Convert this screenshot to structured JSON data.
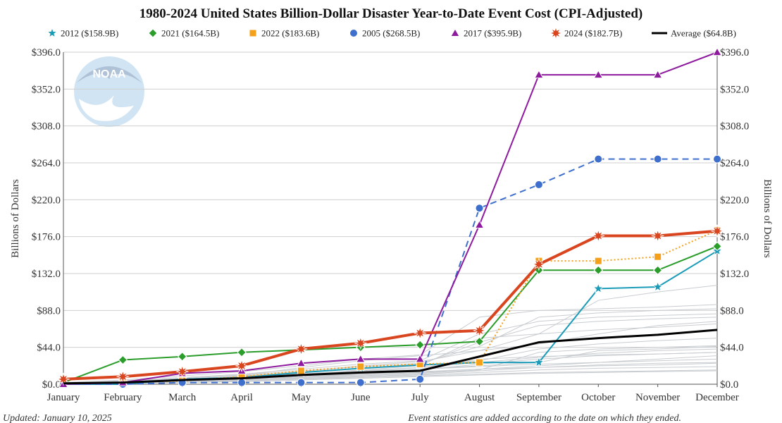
{
  "chart_data": {
    "type": "line",
    "title": "1980-2024 United States Billion-Dollar Disaster Year-to-Date Event Cost (CPI-Adjusted)",
    "ylabel": "Billions of Dollars",
    "ylabel_right": "Billions of Dollars",
    "xlabel": "",
    "ylim": [
      0,
      396
    ],
    "yticks": [
      "$0.0",
      "$44.0",
      "$88.0",
      "$132.0",
      "$176.0",
      "$220.0",
      "$264.0",
      "$308.0",
      "$352.0",
      "$396.0"
    ],
    "yticks_right": [
      "$0.0",
      "$44.0",
      "$88.0",
      "$132.0",
      "$176.0",
      "$220.0",
      "$264.0",
      "$308.0",
      "$352.0",
      "$396.0"
    ],
    "ytick_values": [
      0,
      44,
      88,
      132,
      176,
      220,
      264,
      308,
      352,
      396
    ],
    "categories": [
      "January",
      "February",
      "March",
      "April",
      "May",
      "June",
      "July",
      "August",
      "September",
      "October",
      "November",
      "December"
    ],
    "logo_text": "NOAA",
    "footer_left": "Updated: January 10, 2025",
    "footer_right": "Event statistics are added according to the date on which they ended.",
    "series": [
      {
        "name": "2012 ($158.9B)",
        "legend": "2012 ($158.9B)",
        "color": "#1a9bb8",
        "marker": "star5",
        "dash": "",
        "width": 2,
        "values": [
          0,
          0,
          6,
          8,
          14,
          19,
          23,
          26,
          26,
          114,
          116,
          159
        ]
      },
      {
        "name": "2021 ($164.5B)",
        "legend": "2021 ($164.5B)",
        "color": "#2a9d2a",
        "marker": "diamond",
        "dash": "",
        "width": 2,
        "values": [
          2,
          29,
          33,
          38,
          41,
          44,
          47,
          51,
          136,
          136,
          136,
          164.5
        ]
      },
      {
        "name": "2022 ($183.6B)",
        "legend": "2022 ($183.6B)",
        "color": "#f5a01a",
        "marker": "square",
        "dash": "2,3",
        "width": 2,
        "values": [
          0,
          2,
          4,
          9,
          16,
          21,
          24,
          26,
          147,
          147,
          152,
          183.6
        ]
      },
      {
        "name": "2005 ($268.5B)",
        "legend": "2005 ($268.5B)",
        "color": "#3e6fcd",
        "marker": "circle",
        "dash": "9,6",
        "width": 2,
        "values": [
          0,
          0,
          2,
          2,
          2,
          2,
          6,
          210,
          238,
          268.5,
          268.5,
          268.5
        ]
      },
      {
        "name": "2017 ($395.9B)",
        "legend": "2017 ($395.9B)",
        "color": "#8e1a9e",
        "marker": "triangle",
        "dash": "",
        "width": 2,
        "values": [
          0,
          2,
          13,
          16,
          25,
          30,
          30,
          190,
          369,
          369,
          369,
          395.9
        ]
      },
      {
        "name": "2024 ($182.7B)",
        "legend": "2024 ($182.7B)",
        "color": "#d9451e",
        "marker": "star8",
        "dash": "",
        "width": 4,
        "values": [
          6,
          9,
          15,
          22,
          42,
          49,
          61,
          64,
          143,
          177,
          177,
          182.7
        ]
      },
      {
        "name": "Average ($64.8B)",
        "legend": "Average ($64.8B)",
        "color": "#000000",
        "marker": "none",
        "dash": "",
        "width": 3,
        "values": [
          1,
          2,
          5,
          7,
          11,
          14,
          16,
          33,
          50,
          55,
          59,
          64.8
        ]
      }
    ],
    "background_series": [
      {
        "name": "other-year-1",
        "values": [
          0,
          2,
          4,
          6,
          9,
          12,
          15,
          18,
          20,
          22,
          23,
          25
        ]
      },
      {
        "name": "other-year-2",
        "values": [
          1,
          3,
          6,
          9,
          12,
          15,
          18,
          21,
          24,
          26,
          28,
          30
        ]
      },
      {
        "name": "other-year-3",
        "values": [
          0,
          1,
          3,
          5,
          8,
          12,
          16,
          30,
          33,
          35,
          36,
          38
        ]
      },
      {
        "name": "other-year-4",
        "values": [
          1,
          4,
          8,
          12,
          18,
          24,
          28,
          60,
          75,
          80,
          82,
          84
        ]
      },
      {
        "name": "other-year-5",
        "values": [
          0,
          2,
          5,
          9,
          15,
          22,
          27,
          40,
          60,
          65,
          68,
          72
        ]
      },
      {
        "name": "other-year-6",
        "values": [
          0,
          1,
          2,
          4,
          6,
          8,
          10,
          12,
          14,
          15,
          16,
          17
        ]
      },
      {
        "name": "other-year-7",
        "values": [
          2,
          5,
          10,
          15,
          22,
          30,
          35,
          80,
          88,
          90,
          92,
          95
        ]
      },
      {
        "name": "other-year-8",
        "values": [
          0,
          3,
          7,
          11,
          16,
          21,
          25,
          45,
          80,
          85,
          88,
          90
        ]
      },
      {
        "name": "other-year-9",
        "values": [
          1,
          2,
          4,
          7,
          10,
          14,
          18,
          22,
          26,
          40,
          42,
          45
        ]
      },
      {
        "name": "other-year-10",
        "values": [
          0,
          1,
          2,
          3,
          5,
          7,
          9,
          11,
          13,
          14,
          15,
          16
        ]
      },
      {
        "name": "other-year-11",
        "values": [
          0,
          2,
          6,
          10,
          20,
          28,
          34,
          40,
          48,
          60,
          70,
          75
        ]
      },
      {
        "name": "other-year-12",
        "values": [
          1,
          3,
          5,
          8,
          12,
          17,
          22,
          55,
          60,
          100,
          110,
          118
        ]
      },
      {
        "name": "other-year-13",
        "values": [
          0,
          1,
          3,
          5,
          7,
          9,
          11,
          14,
          17,
          19,
          20,
          21
        ]
      },
      {
        "name": "other-year-14",
        "values": [
          1,
          2,
          4,
          6,
          9,
          13,
          17,
          24,
          30,
          34,
          36,
          38
        ]
      },
      {
        "name": "other-year-15",
        "values": [
          0,
          2,
          4,
          7,
          11,
          15,
          20,
          28,
          42,
          48,
          52,
          55
        ]
      },
      {
        "name": "other-year-16",
        "values": [
          0,
          1,
          2,
          4,
          6,
          9,
          12,
          16,
          20,
          23,
          25,
          26
        ]
      },
      {
        "name": "other-year-17",
        "values": [
          1,
          3,
          6,
          10,
          14,
          19,
          24,
          50,
          70,
          75,
          78,
          80
        ]
      },
      {
        "name": "other-year-18",
        "values": [
          0,
          1,
          3,
          5,
          8,
          11,
          14,
          18,
          22,
          26,
          30,
          34
        ]
      },
      {
        "name": "other-year-19",
        "values": [
          0,
          2,
          5,
          8,
          12,
          16,
          20,
          26,
          32,
          37,
          40,
          42
        ]
      },
      {
        "name": "other-year-20",
        "values": [
          1,
          2,
          3,
          5,
          7,
          10,
          13,
          17,
          38,
          42,
          44,
          46
        ]
      }
    ]
  }
}
